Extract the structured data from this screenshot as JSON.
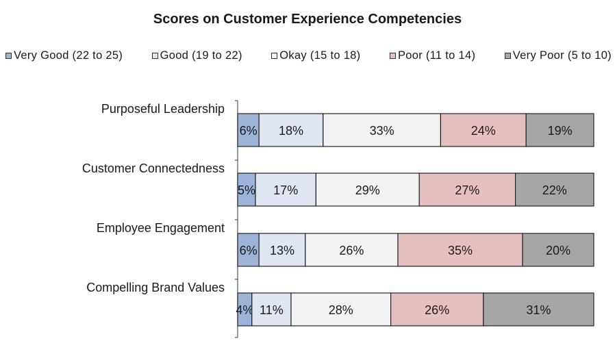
{
  "chart_data": {
    "type": "bar",
    "stacked": true,
    "orientation": "horizontal",
    "title": "Scores on Customer Experience Competencies",
    "legend_position": "top",
    "grid": false,
    "categories": [
      "Purposeful Leadership",
      "Customer Connectedness",
      "Employee Engagement",
      "Compelling Brand Values"
    ],
    "series": [
      {
        "name": "Very Good (22 to 25)",
        "color": "#9db4d8",
        "values": [
          6,
          5,
          6,
          4
        ],
        "labels": [
          "6%",
          "5%",
          "6%",
          "4%"
        ]
      },
      {
        "name": "Good (19 to 22)",
        "color": "#dfe6f2",
        "values": [
          18,
          17,
          13,
          11
        ],
        "labels": [
          "18%",
          "17%",
          "13%",
          "11%"
        ]
      },
      {
        "name": "Okay (15 to 18)",
        "color": "#f3f3f6",
        "values": [
          33,
          29,
          26,
          28
        ],
        "labels": [
          "33%",
          "29%",
          "26%",
          "28%"
        ]
      },
      {
        "name": "Poor (11 to 14)",
        "color": "#e6bfc1",
        "values": [
          24,
          27,
          35,
          26
        ],
        "labels": [
          "24%",
          "27%",
          "35%",
          "26%"
        ]
      },
      {
        "name": "Very Poor (5 to 10)",
        "color": "#a6a6a8",
        "values": [
          19,
          22,
          20,
          31
        ],
        "labels": [
          "19%",
          "22%",
          "20%",
          "31%"
        ]
      }
    ],
    "xlim": [
      0,
      100
    ]
  }
}
